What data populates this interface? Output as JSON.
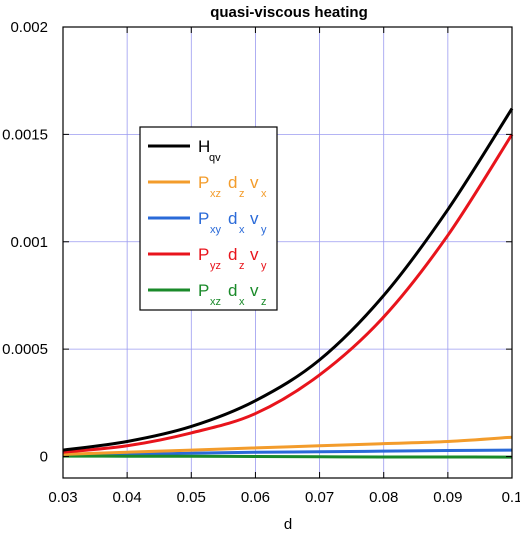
{
  "chart_data": {
    "type": "line",
    "title": "quasi-viscous heating",
    "xlabel": "d",
    "ylabel": "",
    "xlim": [
      0.03,
      0.1
    ],
    "ylim": [
      -0.0001,
      0.002
    ],
    "x_ticks": [
      "0.03",
      "0.04",
      "0.05",
      "0.06",
      "0.07",
      "0.08",
      "0.09",
      "0.1"
    ],
    "y_ticks": [
      "0",
      "0.0005",
      "0.001",
      "0.0015",
      "0.002"
    ],
    "grid": true,
    "legend_position": "upper-left",
    "series": [
      {
        "id": "H_qv",
        "color": "#000000",
        "label_parts": [
          [
            "H",
            ""
          ],
          [
            "",
            "qv"
          ]
        ],
        "x": [
          0.03,
          0.04,
          0.05,
          0.06,
          0.07,
          0.08,
          0.09,
          0.1
        ],
        "y": [
          3e-05,
          7e-05,
          0.00014,
          0.00026,
          0.00045,
          0.00075,
          0.00115,
          0.00162
        ]
      },
      {
        "id": "Pxz_dz_vx",
        "color": "#f39c2b",
        "label_parts": [
          [
            "P",
            "xz"
          ],
          [
            "d",
            "z"
          ],
          [
            "v",
            "x"
          ]
        ],
        "x": [
          0.03,
          0.04,
          0.05,
          0.06,
          0.07,
          0.08,
          0.09,
          0.1
        ],
        "y": [
          1e-05,
          2e-05,
          3e-05,
          4e-05,
          5e-05,
          6e-05,
          7e-05,
          9e-05
        ]
      },
      {
        "id": "Pxy_dx_vy",
        "color": "#2a6ad8",
        "label_parts": [
          [
            "P",
            "xy"
          ],
          [
            "d",
            "x"
          ],
          [
            "v",
            "y"
          ]
        ],
        "x": [
          0.03,
          0.04,
          0.05,
          0.06,
          0.07,
          0.08,
          0.09,
          0.1
        ],
        "y": [
          5e-06,
          1e-05,
          1.5e-05,
          2e-05,
          2.2e-05,
          2.5e-05,
          2.8e-05,
          3e-05
        ]
      },
      {
        "id": "Pyz_dz_vy",
        "color": "#e8141c",
        "label_parts": [
          [
            "P",
            "yz"
          ],
          [
            "d",
            "z"
          ],
          [
            "v",
            "y"
          ]
        ],
        "x": [
          0.03,
          0.04,
          0.05,
          0.06,
          0.07,
          0.08,
          0.09,
          0.1
        ],
        "y": [
          2e-05,
          5e-05,
          0.00011,
          0.0002,
          0.00038,
          0.00065,
          0.00103,
          0.0015
        ]
      },
      {
        "id": "Pxz_dx_vz",
        "color": "#1a8a2a",
        "label_parts": [
          [
            "P",
            "xz"
          ],
          [
            "d",
            "x"
          ],
          [
            "v",
            "z"
          ]
        ],
        "x": [
          0.03,
          0.04,
          0.05,
          0.06,
          0.07,
          0.08,
          0.09,
          0.1
        ],
        "y": [
          2e-06,
          1.5e-06,
          1e-06,
          0.0,
          -1e-06,
          -2e-06,
          -2e-06,
          -3e-06
        ]
      }
    ]
  }
}
